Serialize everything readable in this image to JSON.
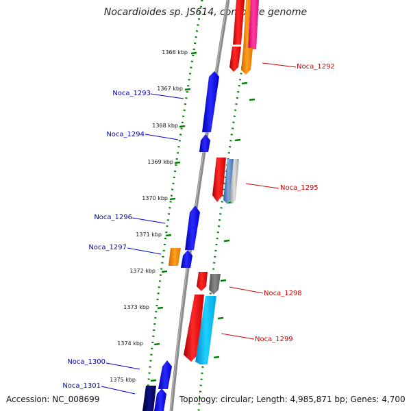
{
  "title": "Nocardioides sp. JS614, complete genome",
  "accession": "Accession: NC_008699",
  "topology": "Topology: circular; Length: 4,985,871 bp; Genes: 4,700",
  "ticks": [
    "1366 kbp",
    "1367 kbp",
    "1368 kbp",
    "1369 kbp",
    "1370 kbp",
    "1371 kbp",
    "1372 kbp",
    "1373 kbp",
    "1374 kbp",
    "1375 kbp"
  ],
  "genes_left": [
    "Noca_1293",
    "Noca_1294",
    "Noca_1296",
    "Noca_1297",
    "Noca_1300",
    "Noca_1301"
  ],
  "genes_right": [
    "Noca_1292",
    "Noca_1295",
    "Noca_1298",
    "Noca_1299"
  ],
  "colors": {
    "forward_strand": "#0000ff",
    "reverse_strand": "#ff0000",
    "orange": "#ff8c00",
    "cyan": "#00bfff",
    "gray": "#777777",
    "pink": "#ff1493",
    "dotted_guide": "#008000",
    "left_label": "#0000aa",
    "right_label": "#cc0000"
  }
}
